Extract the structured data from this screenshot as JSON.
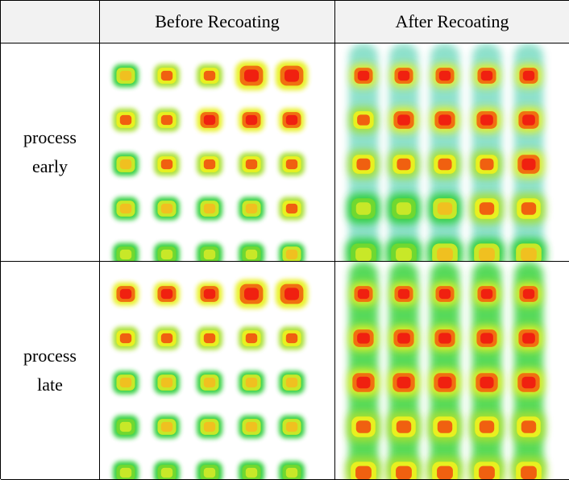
{
  "table": {
    "columns": [
      "Before Recoating",
      "After Recoating"
    ],
    "rows": [
      {
        "label_line1": "process",
        "label_line2": "early"
      },
      {
        "label_line1": "process",
        "label_line2": "late"
      }
    ]
  },
  "colors": {
    "header_bg": "#f2f2f2",
    "thermal_bg_blue": "#1e5bf0",
    "thermal_cyan": "#22c6f0",
    "thermal_green": "#2fcf3a",
    "thermal_yellow": "#e8f020",
    "thermal_red": "#f02010"
  }
}
